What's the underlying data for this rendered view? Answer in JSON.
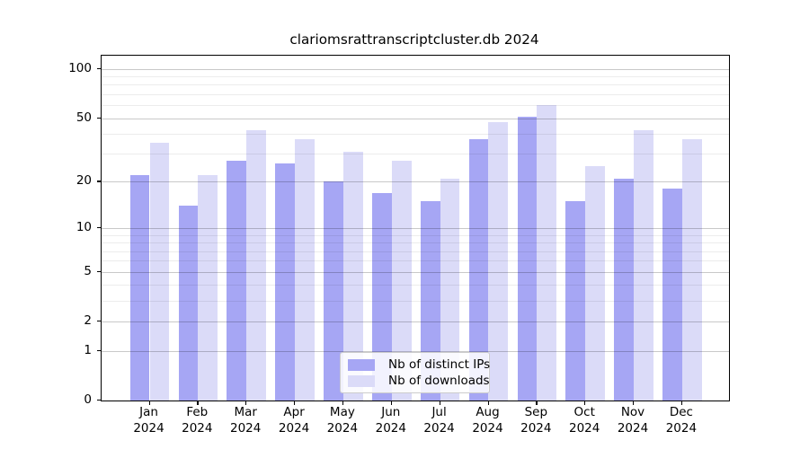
{
  "chart_data": {
    "type": "bar",
    "title": "clariomsrattranscriptcluster.db 2024",
    "categories": [
      "Jan",
      "Feb",
      "Mar",
      "Apr",
      "May",
      "Jun",
      "Jul",
      "Aug",
      "Sep",
      "Oct",
      "Nov",
      "Dec"
    ],
    "x_sublabel": "2024",
    "series": [
      {
        "name": "Nb of distinct IPs",
        "color": "#a6a6f4",
        "values": [
          22,
          14,
          27,
          26,
          20,
          17,
          15,
          37,
          51,
          15,
          21,
          18
        ]
      },
      {
        "name": "Nb of downloads",
        "color": "#dbdbf8",
        "values": [
          35,
          22,
          42,
          37,
          31,
          27,
          21,
          47,
          60,
          25,
          42,
          37
        ]
      }
    ],
    "y_axis": {
      "scale": "log1p",
      "tick_values": [
        0,
        1,
        2,
        5,
        10,
        20,
        50,
        100
      ],
      "minor_grid_values": [
        3,
        4,
        6,
        7,
        8,
        9,
        30,
        40,
        60,
        70,
        80,
        90
      ],
      "max": 120
    },
    "legend": {
      "position": "bottom-center"
    },
    "colors": {
      "axis": "#000000",
      "background": "#ffffff"
    }
  }
}
